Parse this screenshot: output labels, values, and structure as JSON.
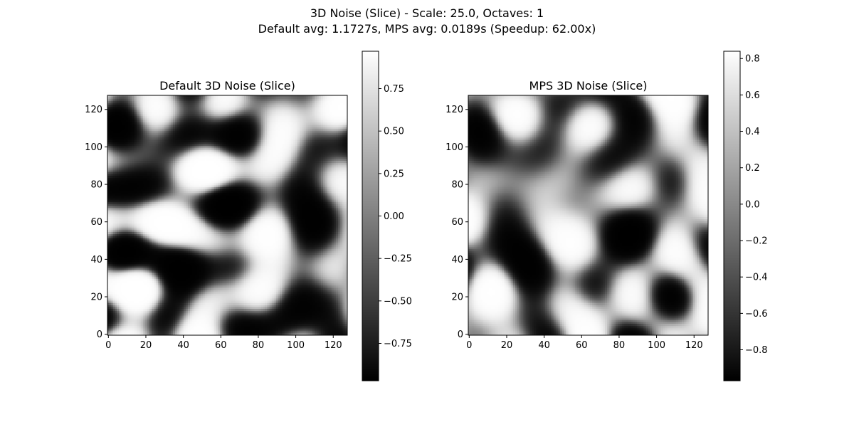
{
  "figure": {
    "title_line1": "3D Noise (Slice) - Scale: 25.0, Octaves: 1",
    "title_line2": "Default avg: 1.1727s, MPS avg: 0.0189s (Speedup: 62.00x)"
  },
  "chart_data": [
    {
      "type": "heatmap",
      "title": "Default 3D Noise (Slice)",
      "colormap": "gray",
      "x_range": [
        0,
        127
      ],
      "y_range": [
        0,
        127
      ],
      "x_ticks": [
        0,
        20,
        40,
        60,
        80,
        100,
        120
      ],
      "y_ticks": [
        0,
        20,
        40,
        60,
        80,
        100,
        120
      ],
      "grid_size": [
        128,
        128
      ],
      "colorbar": {
        "range": [
          -0.97,
          0.97
        ],
        "ticks": [
          -0.75,
          -0.5,
          -0.25,
          0.0,
          0.25,
          0.5,
          0.75
        ],
        "tick_labels": [
          "−0.75",
          "−0.50",
          "−0.25",
          "0.00",
          "0.25",
          "0.50",
          "0.75"
        ]
      }
    },
    {
      "type": "heatmap",
      "title": "MPS 3D Noise (Slice)",
      "colormap": "gray",
      "x_range": [
        0,
        127
      ],
      "y_range": [
        0,
        127
      ],
      "x_ticks": [
        0,
        20,
        40,
        60,
        80,
        100,
        120
      ],
      "y_ticks": [
        0,
        20,
        40,
        60,
        80,
        100,
        120
      ],
      "grid_size": [
        128,
        128
      ],
      "colorbar": {
        "range": [
          -0.97,
          0.84
        ],
        "ticks": [
          -0.8,
          -0.6,
          -0.4,
          -0.2,
          0.0,
          0.2,
          0.4,
          0.6,
          0.8
        ],
        "tick_labels": [
          "−0.8",
          "−0.6",
          "−0.4",
          "−0.2",
          "0.0",
          "0.2",
          "0.4",
          "0.6",
          "0.8"
        ]
      }
    }
  ]
}
